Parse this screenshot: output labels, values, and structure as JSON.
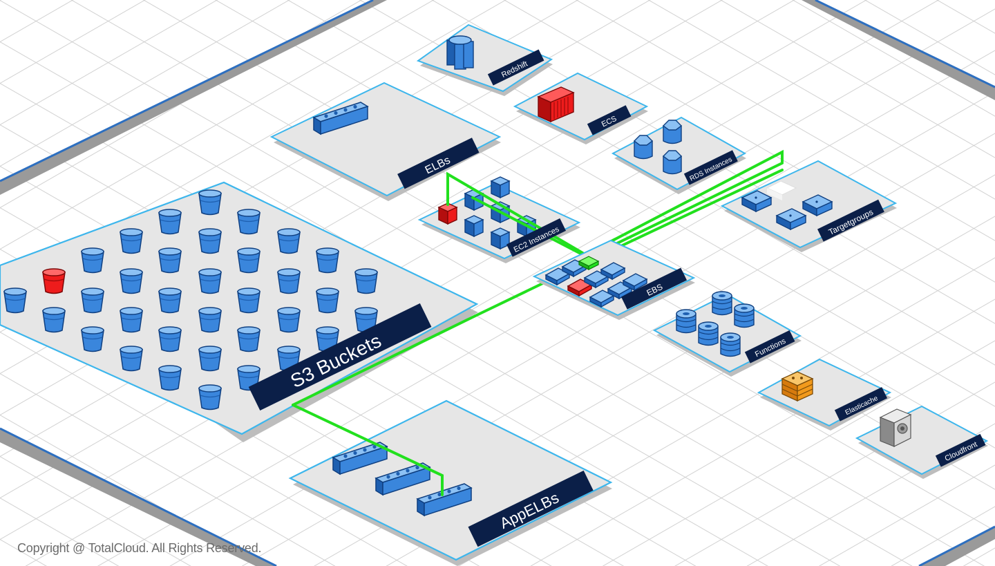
{
  "groups": [
    {
      "id": "redshift",
      "label": "Redshift"
    },
    {
      "id": "ecs",
      "label": "ECS"
    },
    {
      "id": "elbs",
      "label": "ELBs"
    },
    {
      "id": "rds",
      "label": "RDS Instances"
    },
    {
      "id": "ec2",
      "label": "EC2 Instances"
    },
    {
      "id": "targetgroups",
      "label": "Targetgroups"
    },
    {
      "id": "s3",
      "label": "S3 Buckets"
    },
    {
      "id": "ebs",
      "label": "EBS"
    },
    {
      "id": "functions",
      "label": "Functions"
    },
    {
      "id": "elasticache",
      "label": "Elasticache"
    },
    {
      "id": "cloudfront",
      "label": "Cloudfront"
    },
    {
      "id": "appelbs",
      "label": "AppELBs"
    }
  ],
  "footer": {
    "copyright": "Copyright @ TotalCloud. All Rights Reserved."
  },
  "colors": {
    "grid_line": "#cfcfcf",
    "platform_fill": "#e6e6e6",
    "platform_border": "#3db6ec",
    "label_background": "#0b1f48",
    "resource_blue": "#3a86dc",
    "resource_highlight_red": "#ee1c1c",
    "resource_elasticache_orange": "#f29a1c",
    "connection_green": "#22e01e",
    "outer_boundary_blue": "#2d6fc0",
    "outer_boundary_gray": "#9a9a9a"
  },
  "icons": {
    "s3": "bucket-icon",
    "elb": "load-balancer-icon",
    "ec2": "instance-cube-icon",
    "ebs": "volume-icon",
    "rds": "database-cylinder-icon",
    "redshift": "warehouse-icon",
    "ecs": "container-icon",
    "targetgroup": "target-box-icon",
    "function": "function-stack-icon",
    "elasticache": "cache-node-icon",
    "cloudfront": "cdn-server-icon"
  }
}
